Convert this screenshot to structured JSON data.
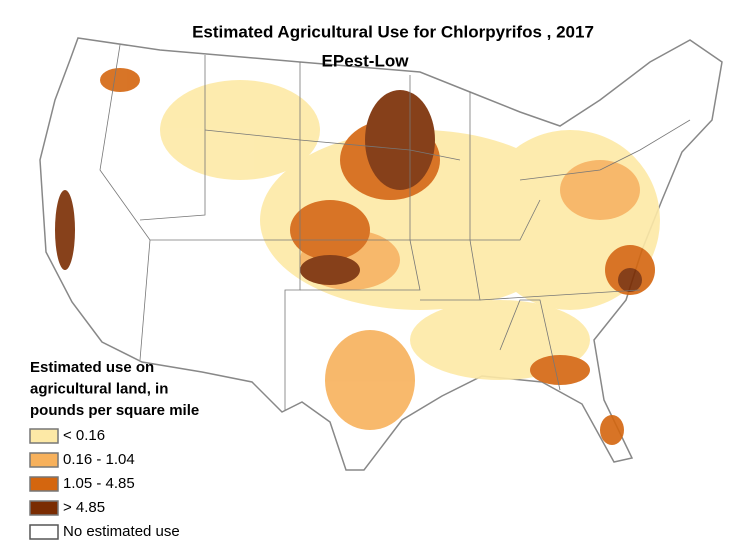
{
  "map": {
    "title": "Estimated Agricultural Use for Chlorpyrifos , 2017",
    "subtitle": "EPest-Low",
    "legend": {
      "title": [
        "Estimated use on",
        "agricultural land, in",
        "pounds per square mile"
      ],
      "items": [
        {
          "label": "< 0.16",
          "color": "#fde9a6"
        },
        {
          "label": "0.16 - 1.04",
          "color": "#f7b15c"
        },
        {
          "label": "1.05 - 4.85",
          "color": "#d4660f"
        },
        {
          "label": "> 4.85",
          "color": "#7a2c02"
        },
        {
          "label": "No estimated use",
          "color": "#ffffff"
        }
      ]
    }
  }
}
